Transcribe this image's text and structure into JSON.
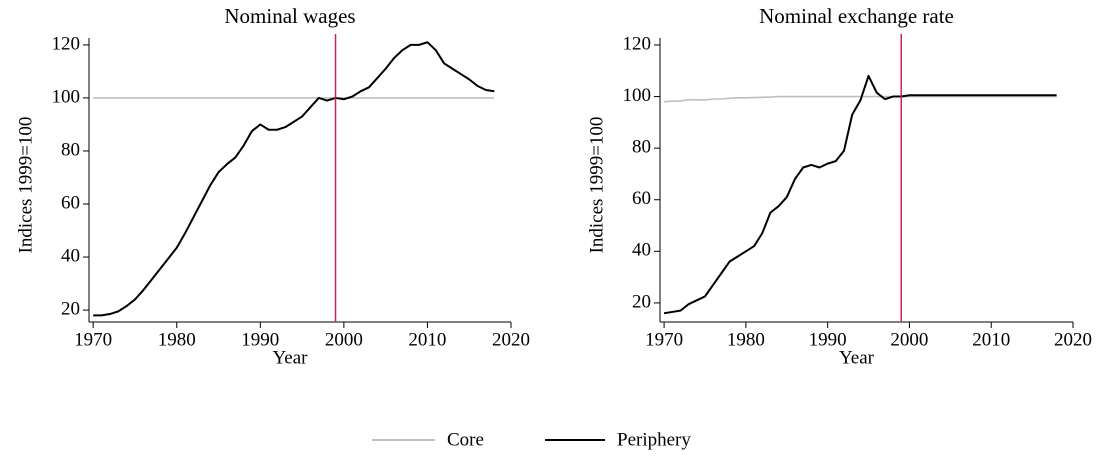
{
  "chart_data": [
    {
      "type": "line",
      "title": "Nominal wages",
      "x_label": "Year",
      "y_label": "Indices 1999=100",
      "x": [
        1970,
        1971,
        1972,
        1973,
        1974,
        1975,
        1976,
        1977,
        1978,
        1979,
        1980,
        1981,
        1982,
        1983,
        1984,
        1985,
        1986,
        1987,
        1988,
        1989,
        1990,
        1991,
        1992,
        1993,
        1994,
        1995,
        1996,
        1997,
        1998,
        1999,
        2000,
        2001,
        2002,
        2003,
        2004,
        2005,
        2006,
        2007,
        2008,
        2009,
        2010,
        2011,
        2012,
        2013,
        2014,
        2015,
        2016,
        2017,
        2018
      ],
      "series": [
        {
          "name": "Core",
          "color": "#bfbfbf",
          "values": [
            100,
            100,
            100,
            100,
            100,
            100,
            100,
            100,
            100,
            100,
            100,
            100,
            100,
            100,
            100,
            100,
            100,
            100,
            100,
            100,
            100,
            100,
            100,
            100,
            100,
            100,
            100,
            100,
            100,
            100,
            100,
            100,
            100,
            100,
            100,
            100,
            100,
            100,
            100,
            100,
            100,
            100,
            100,
            100,
            100,
            100,
            100,
            100,
            100
          ]
        },
        {
          "name": "Periphery",
          "color": "#000000",
          "values": [
            18,
            18,
            18.5,
            19.5,
            21.5,
            24,
            27.5,
            31.5,
            35.5,
            39.5,
            43.5,
            49,
            55,
            61,
            67,
            72,
            75,
            77.5,
            82,
            87.5,
            90,
            88,
            88,
            89,
            91,
            93,
            96.5,
            100,
            99,
            100,
            99.5,
            100.5,
            102.5,
            104,
            107.5,
            111,
            115,
            118,
            120,
            120,
            121,
            118,
            113,
            111,
            109,
            107,
            104.5,
            103,
            102.5
          ]
        }
      ],
      "xlim": [
        1969.5,
        2020
      ],
      "xticks": [
        1970,
        1980,
        1990,
        2000,
        2010,
        2020
      ],
      "ylim": [
        15.5,
        122.6
      ],
      "yticks": [
        20,
        40,
        60,
        80,
        100,
        120
      ],
      "vline": 1999,
      "vline_color": "#c0285a"
    },
    {
      "type": "line",
      "title": "Nominal exchange rate",
      "x_label": "Year",
      "y_label": "Indices 1999=100",
      "x": [
        1970,
        1971,
        1972,
        1973,
        1974,
        1975,
        1976,
        1977,
        1978,
        1979,
        1980,
        1981,
        1982,
        1983,
        1984,
        1985,
        1986,
        1987,
        1988,
        1989,
        1990,
        1991,
        1992,
        1993,
        1994,
        1995,
        1996,
        1997,
        1998,
        1999,
        2000,
        2001,
        2002,
        2003,
        2004,
        2005,
        2006,
        2007,
        2008,
        2009,
        2010,
        2011,
        2012,
        2013,
        2014,
        2015,
        2016,
        2017,
        2018
      ],
      "series": [
        {
          "name": "Core",
          "color": "#bfbfbf",
          "values": [
            98,
            98.2,
            98.3,
            98.8,
            98.7,
            98.7,
            99,
            99.1,
            99.3,
            99.5,
            99.5,
            99.6,
            99.7,
            99.8,
            100,
            100,
            100,
            100,
            100,
            100,
            100,
            100,
            100,
            100,
            100,
            100,
            100,
            100,
            100,
            100,
            100,
            100,
            100,
            100,
            100,
            100,
            100,
            100,
            100,
            100,
            100,
            100,
            100,
            100,
            100,
            100,
            100,
            100,
            100
          ]
        },
        {
          "name": "Periphery",
          "color": "#000000",
          "values": [
            16,
            16.5,
            17,
            19.5,
            21,
            22.5,
            27,
            31.5,
            36,
            38,
            40,
            42,
            47,
            55,
            57.5,
            61,
            68,
            72.5,
            73.5,
            72.5,
            74,
            75,
            79,
            93,
            98.5,
            108,
            101.5,
            99,
            100,
            100,
            100.5,
            100.5,
            100.5,
            100.5,
            100.5,
            100.5,
            100.5,
            100.5,
            100.5,
            100.5,
            100.5,
            100.5,
            100.5,
            100.5,
            100.5,
            100.5,
            100.5,
            100.5,
            100.5
          ]
        }
      ],
      "xlim": [
        1969.5,
        2020
      ],
      "xticks": [
        1970,
        1980,
        1990,
        2000,
        2010,
        2020
      ],
      "ylim": [
        12.6,
        122.7
      ],
      "yticks": [
        20,
        40,
        60,
        80,
        100,
        120
      ],
      "vline": 1999,
      "vline_color": "#c0285a"
    }
  ]
}
